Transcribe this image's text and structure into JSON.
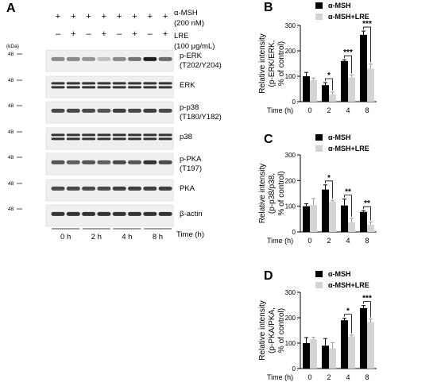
{
  "panel_a": {
    "letter": "A",
    "treatments": [
      {
        "label_line1": "α-MSH",
        "label_line2": "(200 nM)",
        "signs": [
          "+",
          "+",
          "+",
          "+",
          "+",
          "+",
          "+",
          "+"
        ]
      },
      {
        "label_line1": "LRE",
        "label_line2": "(100 μg/mL)",
        "signs": [
          "–",
          "+",
          "–",
          "+",
          "–",
          "+",
          "–",
          "+"
        ]
      }
    ],
    "kda_label": "(kDa)",
    "blots": [
      {
        "marker": "48",
        "label_line1": "p-ERK",
        "label_line2": "(T202/Y204)"
      },
      {
        "marker": "48",
        "label_line1": "ERK",
        "label_line2": ""
      },
      {
        "marker": "48",
        "label_line1": "p-p38",
        "label_line2": "(T180/Y182)"
      },
      {
        "marker": "48",
        "label_line1": "p38",
        "label_line2": ""
      },
      {
        "marker": "48",
        "label_line1": "p-PKA",
        "label_line2": "(T197)"
      },
      {
        "marker": "48",
        "label_line1": "PKA",
        "label_line2": ""
      },
      {
        "marker": "48",
        "label_line1": "β-actin",
        "label_line2": ""
      }
    ],
    "band_intensity": [
      [
        0.45,
        0.45,
        0.4,
        0.2,
        0.45,
        0.55,
        0.95,
        0.6
      ],
      [
        0.85,
        0.85,
        0.85,
        0.85,
        0.85,
        0.85,
        0.85,
        0.85
      ],
      [
        0.75,
        0.75,
        0.75,
        0.7,
        0.8,
        0.75,
        0.8,
        0.75
      ],
      [
        0.85,
        0.85,
        0.85,
        0.85,
        0.85,
        0.85,
        0.85,
        0.85
      ],
      [
        0.7,
        0.65,
        0.7,
        0.65,
        0.75,
        0.7,
        0.85,
        0.75
      ],
      [
        0.75,
        0.75,
        0.75,
        0.75,
        0.8,
        0.8,
        0.8,
        0.8
      ],
      [
        0.85,
        0.85,
        0.85,
        0.85,
        0.85,
        0.85,
        0.85,
        0.85
      ]
    ],
    "time_groups": [
      "0 h",
      "2 h",
      "4 h",
      "8 h"
    ],
    "time_axis_label": "Time (h)"
  },
  "legend": {
    "series1": "α-MSH",
    "series2": "α-MSH+LRE"
  },
  "colors": {
    "series1": "#000000",
    "series2": "#d3d3d3"
  },
  "chart_data": [
    {
      "letter": "B",
      "type": "bar",
      "ylabel_lines": [
        "Relative intensity",
        "(p-ERK/ERK,",
        "% of control)"
      ],
      "xlabel": "Time (h)",
      "categories": [
        "0",
        "2",
        "4",
        "8"
      ],
      "ylim": [
        0,
        300
      ],
      "yticks": [
        0,
        100,
        200,
        300
      ],
      "legend_position": "top-right",
      "series": [
        {
          "name": "α-MSH",
          "values": [
            100,
            65,
            160,
            263
          ],
          "errors": [
            15,
            10,
            5,
            15
          ]
        },
        {
          "name": "α-MSH+LRE",
          "values": [
            85,
            28,
            95,
            130
          ],
          "errors": [
            8,
            10,
            10,
            18
          ]
        }
      ],
      "significance": [
        {
          "category_index": 1,
          "label": "*"
        },
        {
          "category_index": 2,
          "label": "***"
        },
        {
          "category_index": 3,
          "label": "***"
        }
      ]
    },
    {
      "letter": "C",
      "type": "bar",
      "ylabel_lines": [
        "Relative intensity",
        "(p-p38/p38,",
        "% of control)"
      ],
      "xlabel": "Time (h)",
      "categories": [
        "0",
        "2",
        "4",
        "8"
      ],
      "ylim": [
        0,
        300
      ],
      "yticks": [
        0,
        100,
        200,
        300
      ],
      "legend_position": "top-right",
      "series": [
        {
          "name": "α-MSH",
          "values": [
            100,
            165,
            103,
            78
          ],
          "errors": [
            10,
            18,
            25,
            5
          ]
        },
        {
          "name": "α-MSH+LRE",
          "values": [
            105,
            118,
            38,
            28
          ],
          "errors": [
            25,
            5,
            15,
            10
          ]
        }
      ],
      "significance": [
        {
          "category_index": 1,
          "label": "*"
        },
        {
          "category_index": 2,
          "label": "**"
        },
        {
          "category_index": 3,
          "label": "**"
        }
      ]
    },
    {
      "letter": "D",
      "type": "bar",
      "ylabel_lines": [
        "Relative intensity",
        "(p-PKA/PKA,",
        "% of control)"
      ],
      "xlabel": "Time (h)",
      "categories": [
        "0",
        "2",
        "4",
        "8"
      ],
      "ylim": [
        0,
        300
      ],
      "yticks": [
        0,
        100,
        200,
        300
      ],
      "legend_position": "top-right",
      "series": [
        {
          "name": "α-MSH",
          "values": [
            100,
            90,
            190,
            238
          ],
          "errors": [
            22,
            28,
            8,
            10
          ]
        },
        {
          "name": "α-MSH+LRE",
          "values": [
            115,
            80,
            127,
            183
          ],
          "errors": [
            8,
            22,
            5,
            12
          ]
        }
      ],
      "significance": [
        {
          "category_index": 2,
          "label": "*"
        },
        {
          "category_index": 3,
          "label": "***"
        }
      ]
    }
  ]
}
